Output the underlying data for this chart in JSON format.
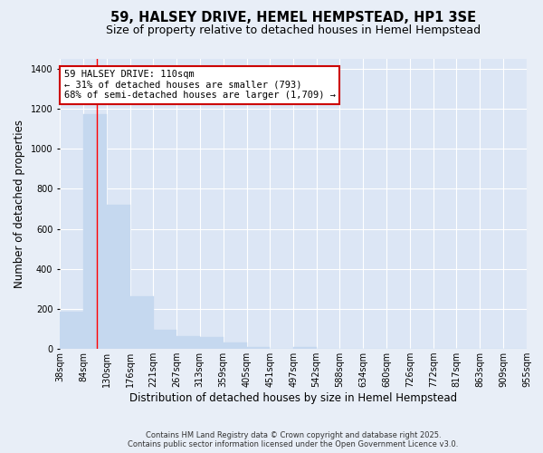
{
  "title": "59, HALSEY DRIVE, HEMEL HEMPSTEAD, HP1 3SE",
  "subtitle": "Size of property relative to detached houses in Hemel Hempstead",
  "xlabel": "Distribution of detached houses by size in Hemel Hempstead",
  "ylabel": "Number of detached properties",
  "footer_line1": "Contains HM Land Registry data © Crown copyright and database right 2025.",
  "footer_line2": "Contains public sector information licensed under the Open Government Licence v3.0.",
  "annotation_line1": "59 HALSEY DRIVE: 110sqm",
  "annotation_line2": "← 31% of detached houses are smaller (793)",
  "annotation_line3": "68% of semi-detached houses are larger (1,709) →",
  "bar_color": "#c5d8ef",
  "red_line_x": 110,
  "bins": [
    38,
    84,
    130,
    176,
    221,
    267,
    313,
    359,
    405,
    451,
    497,
    542,
    588,
    634,
    680,
    726,
    772,
    817,
    863,
    909,
    955
  ],
  "bin_labels": [
    "38sqm",
    "84sqm",
    "130sqm",
    "176sqm",
    "221sqm",
    "267sqm",
    "313sqm",
    "359sqm",
    "405sqm",
    "451sqm",
    "497sqm",
    "542sqm",
    "588sqm",
    "634sqm",
    "680sqm",
    "726sqm",
    "772sqm",
    "817sqm",
    "863sqm",
    "909sqm",
    "955sqm"
  ],
  "values": [
    185,
    1175,
    720,
    265,
    95,
    65,
    60,
    30,
    10,
    0,
    10,
    0,
    0,
    0,
    0,
    0,
    0,
    0,
    0,
    0
  ],
  "ylim": [
    0,
    1450
  ],
  "yticks": [
    0,
    200,
    400,
    600,
    800,
    1000,
    1200,
    1400
  ],
  "background_color": "#e8eef7",
  "axes_background_color": "#dce6f5",
  "grid_color": "#ffffff",
  "annotation_box_color": "#ffffff",
  "annotation_box_edge_color": "#cc0000",
  "title_fontsize": 10.5,
  "subtitle_fontsize": 9,
  "tick_fontsize": 7,
  "label_fontsize": 8.5,
  "annotation_fontsize": 7.5,
  "footer_fontsize": 6
}
